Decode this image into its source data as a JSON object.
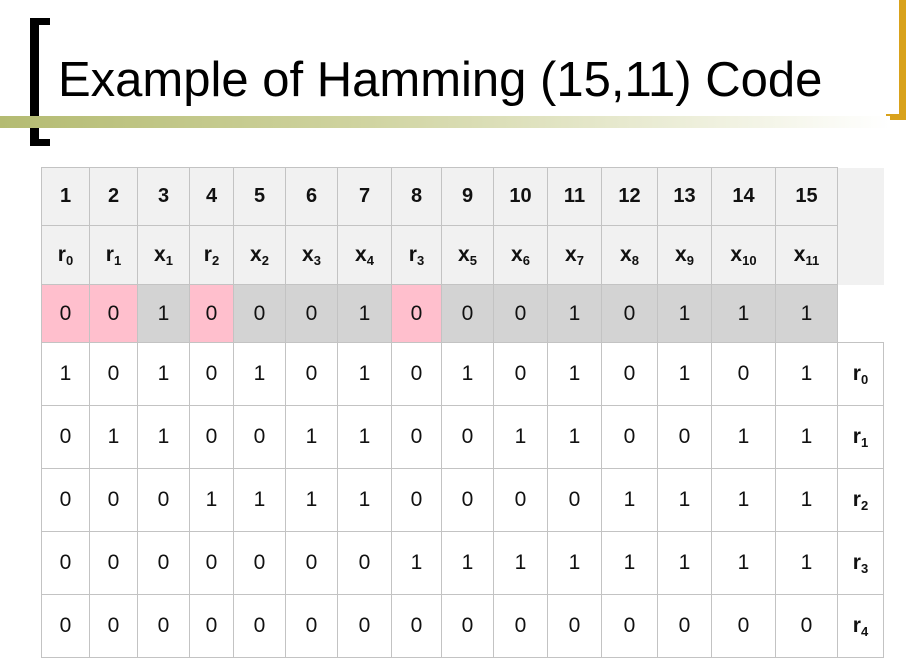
{
  "slide": {
    "title": "Example of Hamming (15,11) Code"
  },
  "table": {
    "positions": [
      "1",
      "2",
      "3",
      "4",
      "5",
      "6",
      "7",
      "8",
      "9",
      "10",
      "11",
      "12",
      "13",
      "14",
      "15"
    ],
    "symbols": [
      {
        "base": "r",
        "sub": "0"
      },
      {
        "base": "r",
        "sub": "1"
      },
      {
        "base": "x",
        "sub": "1"
      },
      {
        "base": "r",
        "sub": "2"
      },
      {
        "base": "x",
        "sub": "2"
      },
      {
        "base": "x",
        "sub": "3"
      },
      {
        "base": "x",
        "sub": "4"
      },
      {
        "base": "r",
        "sub": "3"
      },
      {
        "base": "x",
        "sub": "5"
      },
      {
        "base": "x",
        "sub": "6"
      },
      {
        "base": "x",
        "sub": "7"
      },
      {
        "base": "x",
        "sub": "8"
      },
      {
        "base": "x",
        "sub": "9"
      },
      {
        "base": "x",
        "sub": "10"
      },
      {
        "base": "x",
        "sub": "11"
      }
    ],
    "codeword": [
      "0",
      "0",
      "1",
      "0",
      "0",
      "0",
      "1",
      "0",
      "0",
      "0",
      "1",
      "0",
      "1",
      "1",
      "1"
    ],
    "codeword_highlight": [
      "pink",
      "pink",
      "gray",
      "pink",
      "gray",
      "gray",
      "gray",
      "pink",
      "gray",
      "gray",
      "gray",
      "gray",
      "gray",
      "gray",
      "gray"
    ],
    "parity_rows": [
      {
        "label": {
          "base": "r",
          "sub": "0"
        },
        "bits": [
          "1",
          "0",
          "1",
          "0",
          "1",
          "0",
          "1",
          "0",
          "1",
          "0",
          "1",
          "0",
          "1",
          "0",
          "1"
        ]
      },
      {
        "label": {
          "base": "r",
          "sub": "1"
        },
        "bits": [
          "0",
          "1",
          "1",
          "0",
          "0",
          "1",
          "1",
          "0",
          "0",
          "1",
          "1",
          "0",
          "0",
          "1",
          "1"
        ]
      },
      {
        "label": {
          "base": "r",
          "sub": "2"
        },
        "bits": [
          "0",
          "0",
          "0",
          "1",
          "1",
          "1",
          "1",
          "0",
          "0",
          "0",
          "0",
          "1",
          "1",
          "1",
          "1"
        ]
      },
      {
        "label": {
          "base": "r",
          "sub": "3"
        },
        "bits": [
          "0",
          "0",
          "0",
          "0",
          "0",
          "0",
          "0",
          "1",
          "1",
          "1",
          "1",
          "1",
          "1",
          "1",
          "1"
        ]
      },
      {
        "label": {
          "base": "r",
          "sub": "4"
        },
        "bits": [
          "0",
          "0",
          "0",
          "0",
          "0",
          "0",
          "0",
          "0",
          "0",
          "0",
          "0",
          "0",
          "0",
          "0",
          "0"
        ]
      }
    ],
    "colors": {
      "pink": "#ffbfcd",
      "gray": "#d3d3d3",
      "header": "#f1f1f1"
    }
  }
}
